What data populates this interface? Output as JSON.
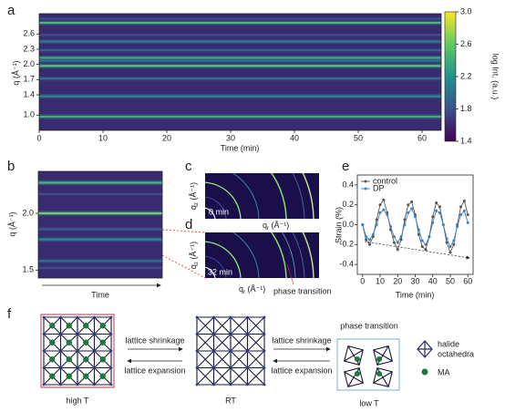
{
  "panel_labels": {
    "a": "a",
    "b": "b",
    "c": "c",
    "d": "d",
    "e": "e",
    "f": "f"
  },
  "chart_data": [
    {
      "type": "heatmap",
      "x_label": "Time (min)",
      "y_label": "q (Å⁻¹)",
      "xlim": [
        0,
        63
      ],
      "xticks": [
        0,
        10,
        20,
        30,
        40,
        50,
        60
      ],
      "ylim": [
        0.7,
        3.0
      ],
      "yticks": [
        {
          "value": 1,
          "label": "1.0"
        },
        1.4,
        1.7,
        {
          "value": 2,
          "label": "2.0"
        },
        2.3,
        2.6
      ],
      "bands": [
        {
          "q": 0.97,
          "intensity": 2.4
        },
        {
          "q": 1.37,
          "intensity": 2.2
        },
        {
          "q": 1.72,
          "intensity": 2.0
        },
        {
          "q": 1.97,
          "intensity": 2.6
        },
        {
          "q": 2.07,
          "intensity": 2.0
        },
        {
          "q": 2.13,
          "intensity": 2.4
        },
        {
          "q": 2.28,
          "intensity": 1.9
        },
        {
          "q": 2.45,
          "intensity": 2.1
        },
        {
          "q": 2.58,
          "intensity": 1.8
        },
        {
          "q": 2.82,
          "intensity": 2.5
        },
        {
          "q": 2.9,
          "intensity": 1.8
        }
      ],
      "colorbar": {
        "label": "log Int. (a.u.)",
        "clim": [
          1.4,
          3.0
        ],
        "ticks": [
          1.4,
          1.8,
          2.2,
          2.6,
          {
            "value": 3,
            "label": "3.0"
          }
        ]
      }
    },
    {
      "type": "heatmap",
      "x_label": "Time",
      "y_label": "q (Å⁻¹)",
      "ylim": [
        1.43,
        2.37
      ],
      "yticks": [
        1.5,
        {
          "value": 2,
          "label": "2.0"
        }
      ],
      "bands": [
        {
          "q": 2.27,
          "intensity": 2.5
        },
        {
          "q": 2.17,
          "intensity": 1.8
        },
        {
          "q": 2.0,
          "intensity": 2.7
        },
        {
          "q": 1.86,
          "intensity": 1.9
        },
        {
          "q": 1.77,
          "intensity": 2.2
        },
        {
          "q": 1.58,
          "intensity": 2.0
        },
        {
          "q": 1.52,
          "intensity": 1.8
        }
      ]
    },
    {
      "type": "line",
      "x_label": "Time (min)",
      "y_label": "Strain (%)",
      "legend": "upper left",
      "xlim": [
        -3,
        63
      ],
      "xticks": [
        0,
        10,
        20,
        30,
        40,
        50,
        60
      ],
      "ylim": [
        -0.5,
        0.5
      ],
      "yticks": [
        -0.4,
        -0.2,
        {
          "value": 0,
          "label": "0.0"
        },
        0.2,
        0.4
      ],
      "x": [
        0,
        2,
        4,
        6,
        8,
        10,
        12,
        14,
        16,
        18,
        20,
        22,
        24,
        26,
        28,
        30,
        32,
        34,
        36,
        38,
        40,
        42,
        44,
        46,
        48,
        50,
        52,
        54,
        56,
        58,
        60
      ],
      "series": [
        {
          "name": "control",
          "color": "#555555",
          "values": [
            0.0,
            -0.15,
            -0.2,
            -0.12,
            0.05,
            0.2,
            0.25,
            0.12,
            -0.05,
            -0.18,
            -0.25,
            -0.15,
            0.05,
            0.2,
            0.23,
            0.1,
            -0.1,
            -0.22,
            -0.25,
            -0.12,
            0.08,
            0.22,
            0.18,
            0.0,
            -0.18,
            -0.28,
            -0.2,
            0.0,
            0.18,
            0.24,
            0.1
          ]
        },
        {
          "name": "DP",
          "color": "#3f7fbf",
          "values": [
            0.0,
            -0.12,
            -0.15,
            -0.1,
            0.0,
            0.12,
            0.15,
            0.1,
            -0.02,
            -0.12,
            -0.18,
            -0.12,
            0.0,
            0.12,
            0.16,
            0.08,
            -0.05,
            -0.16,
            -0.2,
            -0.12,
            0.02,
            0.14,
            0.12,
            0.0,
            -0.14,
            -0.22,
            -0.16,
            -0.02,
            0.1,
            0.14,
            0.02
          ]
        }
      ]
    }
  ],
  "gisaxs": {
    "axis_symbol": "q",
    "z_subscript": "z",
    "r_subscript": "r",
    "unit": "(Å⁻¹)",
    "c_time": "0 min",
    "d_time": "32 min",
    "annotation": "phase transition"
  },
  "diagram": {
    "shrinkage_1": "lattice shrinkage",
    "expansion_1": "lattice expansion",
    "shrinkage_2": "lattice shrinkage",
    "expansion_2": "lattice expansion",
    "high_t": "high T",
    "rt": "RT",
    "low_t": "low T",
    "phase_transition": "phase transition",
    "legend_octahedra_1": "halide",
    "legend_octahedra_2": "octahedra",
    "legend_ma": "MA"
  }
}
